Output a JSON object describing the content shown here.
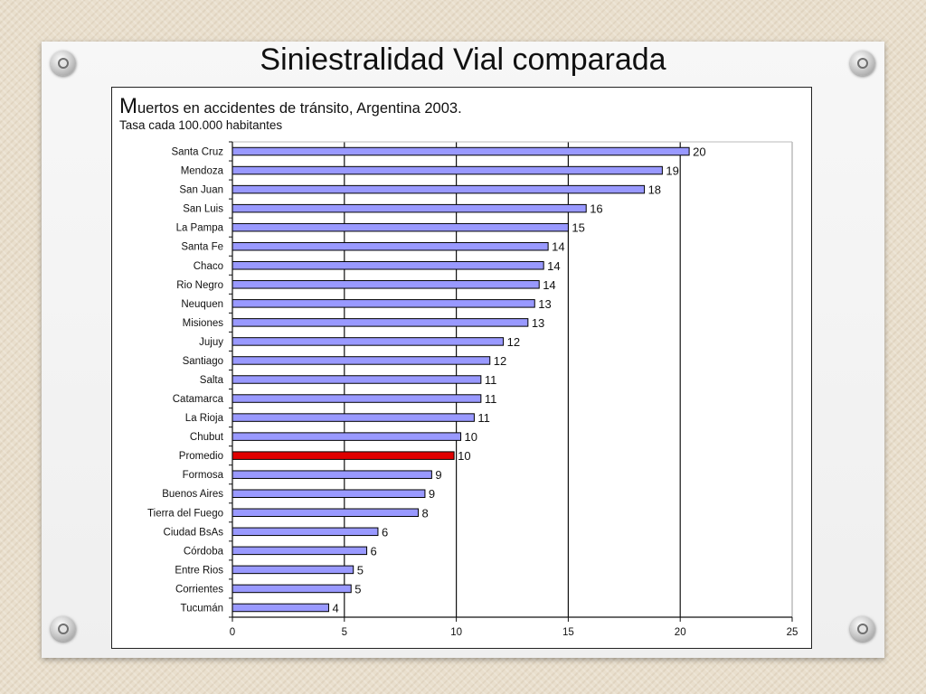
{
  "slide": {
    "title": "Siniestralidad Vial comparada"
  },
  "chart_data": {
    "type": "bar",
    "orientation": "horizontal",
    "title_initial": "M",
    "title_rest": "uertos en accidentes de tránsito, Argentina 2003.",
    "subtitle": "Tasa cada 100.000 habitantes",
    "xlim": [
      0,
      25
    ],
    "xticks": [
      0,
      5,
      10,
      15,
      20,
      25
    ],
    "grid": "vertical",
    "categories": [
      "Santa Cruz",
      "Mendoza",
      "San Juan",
      "San Luis",
      "La Pampa",
      "Santa Fe",
      "Chaco",
      "Rio Negro",
      "Neuquen",
      "Misiones",
      "Jujuy",
      "Santiago",
      "Salta",
      "Catamarca",
      "La Rioja",
      "Chubut",
      "Promedio",
      "Formosa",
      "Buenos Aires",
      "Tierra del Fuego",
      "Ciudad BsAs",
      "Córdoba",
      "Entre Rios",
      "Corrientes",
      "Tucumán"
    ],
    "values": [
      20.4,
      19.2,
      18.4,
      15.8,
      15.0,
      14.1,
      13.9,
      13.7,
      13.5,
      13.2,
      12.1,
      11.5,
      11.1,
      11.1,
      10.8,
      10.2,
      9.9,
      8.9,
      8.6,
      8.3,
      6.5,
      6.0,
      5.4,
      5.3,
      4.3
    ],
    "value_labels": [
      "20",
      "19",
      "18",
      "16",
      "15",
      "14",
      "14",
      "14",
      "13",
      "13",
      "12",
      "12",
      "11",
      "11",
      "11",
      "10",
      "10",
      "9",
      "9",
      "8",
      "6",
      "6",
      "5",
      "5",
      "4"
    ],
    "highlight": "Promedio",
    "colors": {
      "bar": "#9999ff",
      "highlight_bar": "#e00000",
      "bar_stroke": "#000000"
    }
  }
}
